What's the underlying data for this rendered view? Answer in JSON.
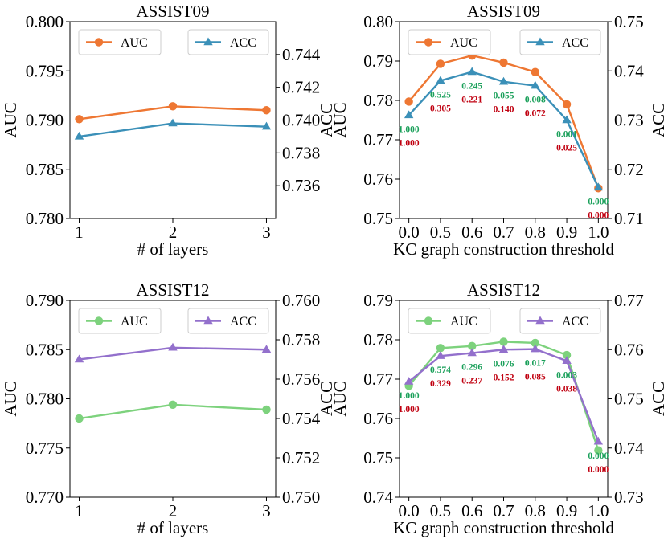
{
  "colors": {
    "assist09_auc": "#ee7733",
    "assist09_acc": "#3b90b8",
    "assist12_auc": "#7dd27d",
    "assist12_acc": "#9370cc",
    "ann_top": "#1aa05a",
    "ann_bottom": "#c00010"
  },
  "chart_data": [
    {
      "id": "p1",
      "type": "line",
      "title": "ASSIST09",
      "xlabel": "# of layers",
      "ylabel": "AUC",
      "y2label": "ACC",
      "categories": [
        "1",
        "2",
        "3"
      ],
      "ylim": [
        0.78,
        0.8
      ],
      "y2lim": [
        0.734,
        0.746
      ],
      "yticks": [
        "0.780",
        "0.785",
        "0.790",
        "0.795",
        "0.800"
      ],
      "y2ticks": [
        "0.736",
        "0.738",
        "0.740",
        "0.742",
        "0.744"
      ],
      "series": [
        {
          "name": "AUC",
          "axis": "left",
          "marker": "circle",
          "values": [
            0.7901,
            0.7914,
            0.791
          ]
        },
        {
          "name": "ACC",
          "axis": "right",
          "marker": "triangle",
          "values": [
            0.739,
            0.7398,
            0.7396
          ]
        }
      ],
      "legend": [
        "AUC",
        "ACC"
      ]
    },
    {
      "id": "p2",
      "type": "line",
      "title": "ASSIST09",
      "xlabel": "KC graph construction threshold",
      "ylabel": "AUC",
      "y2label": "ACC",
      "categories": [
        "0.0",
        "0.5",
        "0.6",
        "0.7",
        "0.8",
        "0.9",
        "1.0"
      ],
      "ylim": [
        0.75,
        0.8
      ],
      "y2lim": [
        0.71,
        0.75
      ],
      "yticks": [
        "0.75",
        "0.76",
        "0.77",
        "0.78",
        "0.79",
        "0.80"
      ],
      "y2ticks": [
        "0.71",
        "0.72",
        "0.73",
        "0.74",
        "0.75"
      ],
      "series": [
        {
          "name": "AUC",
          "axis": "left",
          "marker": "circle",
          "values": [
            0.7797,
            0.7893,
            0.7914,
            0.7896,
            0.7872,
            0.779,
            0.7577
          ]
        },
        {
          "name": "ACC",
          "axis": "right",
          "marker": "triangle",
          "values": [
            0.731,
            0.738,
            0.7398,
            0.7378,
            0.737,
            0.73,
            0.7163
          ]
        }
      ],
      "annotations_top": [
        "1.000",
        "0.525",
        "0.245",
        "0.055",
        "0.008",
        "0.001",
        "0.000"
      ],
      "annotations_bottom": [
        "1.000",
        "0.305",
        "0.221",
        "0.140",
        "0.072",
        "0.025",
        "0.000"
      ],
      "legend": [
        "AUC",
        "ACC"
      ]
    },
    {
      "id": "p3",
      "type": "line",
      "title": "ASSIST12",
      "xlabel": "# of layers",
      "ylabel": "AUC",
      "y2label": "ACC",
      "categories": [
        "1",
        "2",
        "3"
      ],
      "ylim": [
        0.77,
        0.79
      ],
      "y2lim": [
        0.75,
        0.76
      ],
      "yticks": [
        "0.770",
        "0.775",
        "0.780",
        "0.785",
        "0.790"
      ],
      "y2ticks": [
        "0.750",
        "0.752",
        "0.754",
        "0.756",
        "0.758",
        "0.760"
      ],
      "series": [
        {
          "name": "AUC",
          "axis": "left",
          "marker": "circle",
          "values": [
            0.778,
            0.7794,
            0.7789
          ]
        },
        {
          "name": "ACC",
          "axis": "right",
          "marker": "triangle",
          "values": [
            0.757,
            0.7576,
            0.7575
          ]
        }
      ],
      "legend": [
        "AUC",
        "ACC"
      ]
    },
    {
      "id": "p4",
      "type": "line",
      "title": "ASSIST12",
      "xlabel": "KC graph construction threshold",
      "ylabel": "AUC",
      "y2label": "ACC",
      "categories": [
        "0.0",
        "0.5",
        "0.6",
        "0.7",
        "0.8",
        "0.9",
        "1.0"
      ],
      "ylim": [
        0.74,
        0.79
      ],
      "y2lim": [
        0.73,
        0.77
      ],
      "yticks": [
        "0.74",
        "0.75",
        "0.76",
        "0.77",
        "0.78",
        "0.79"
      ],
      "y2ticks": [
        "0.73",
        "0.74",
        "0.75",
        "0.76",
        "0.77"
      ],
      "series": [
        {
          "name": "AUC",
          "axis": "left",
          "marker": "circle",
          "values": [
            0.7683,
            0.7779,
            0.7784,
            0.7795,
            0.7792,
            0.7761,
            0.7519
          ]
        },
        {
          "name": "ACC",
          "axis": "right",
          "marker": "triangle",
          "values": [
            0.7535,
            0.7587,
            0.7593,
            0.76,
            0.7601,
            0.7577,
            0.7413
          ]
        }
      ],
      "annotations_top": [
        "1.000",
        "0.574",
        "0.296",
        "0.076",
        "0.017",
        "0.003",
        "0.000"
      ],
      "annotations_bottom": [
        "1.000",
        "0.329",
        "0.237",
        "0.152",
        "0.085",
        "0.038",
        "0.000"
      ],
      "legend": [
        "AUC",
        "ACC"
      ]
    }
  ]
}
